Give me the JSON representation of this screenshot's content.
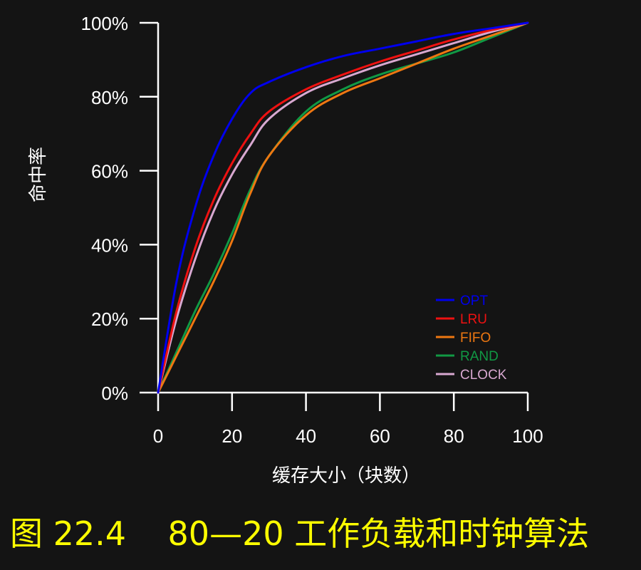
{
  "caption": "图 22.4    80—20 工作负载和时钟算法",
  "chart_data": {
    "type": "line",
    "title": "",
    "xlabel": "缓存大小（块数）",
    "ylabel": "命中率",
    "xlim": [
      0,
      100
    ],
    "ylim": [
      0,
      100
    ],
    "x_ticks": [
      0,
      20,
      40,
      60,
      80,
      100
    ],
    "x_tick_labels": [
      "0",
      "20",
      "40",
      "60",
      "80",
      "100"
    ],
    "y_ticks": [
      0,
      20,
      40,
      60,
      80,
      100
    ],
    "y_tick_labels": [
      "0%",
      "20%",
      "40%",
      "60%",
      "80%",
      "100%"
    ],
    "grid": false,
    "legend_position": "bottom-right",
    "series": [
      {
        "name": "OPT",
        "color": "#0000ee",
        "x": [
          0,
          5,
          10,
          15,
          20,
          25,
          30,
          40,
          50,
          60,
          70,
          80,
          90,
          100
        ],
        "y": [
          0,
          30,
          50,
          64,
          74,
          81,
          84,
          88,
          91,
          93,
          95,
          97,
          98.5,
          100
        ]
      },
      {
        "name": "LRU",
        "color": "#ee1111",
        "x": [
          0,
          5,
          10,
          15,
          20,
          25,
          30,
          40,
          50,
          60,
          70,
          80,
          90,
          100
        ],
        "y": [
          0,
          22,
          39,
          52,
          62,
          70,
          76,
          82,
          86,
          89.5,
          92.5,
          95.5,
          98,
          100
        ]
      },
      {
        "name": "FIFO",
        "color": "#ee7711",
        "x": [
          0,
          5,
          10,
          15,
          20,
          25,
          30,
          40,
          50,
          60,
          70,
          80,
          90,
          100
        ],
        "y": [
          0,
          10,
          20,
          30,
          41,
          54,
          64,
          75,
          81,
          85,
          89,
          93,
          96.5,
          100
        ]
      },
      {
        "name": "RAND",
        "color": "#119944",
        "x": [
          0,
          5,
          10,
          15,
          20,
          25,
          30,
          40,
          50,
          60,
          70,
          80,
          90,
          100
        ],
        "y": [
          0,
          11,
          22,
          32,
          43,
          55,
          64,
          76,
          82,
          86,
          89,
          92,
          96,
          100
        ]
      },
      {
        "name": "CLOCK",
        "color": "#d8a8d0",
        "x": [
          0,
          5,
          10,
          15,
          20,
          25,
          30,
          40,
          50,
          60,
          70,
          80,
          90,
          100
        ],
        "y": [
          0,
          20,
          36,
          49,
          59,
          67,
          74,
          81,
          85,
          88.5,
          91.5,
          94.5,
          97.5,
          100
        ]
      }
    ]
  }
}
